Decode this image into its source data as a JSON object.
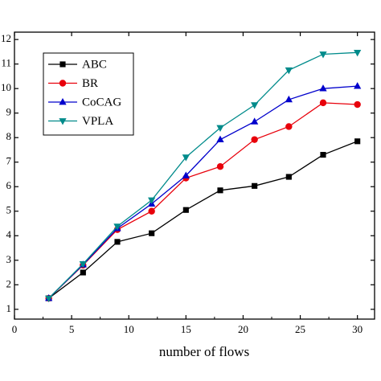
{
  "chart_data": {
    "type": "line",
    "title": "",
    "xlabel": "number of flows",
    "ylabel": "",
    "xlim": [
      0,
      31.5
    ],
    "ylim": [
      0.6,
      12.3
    ],
    "x_ticks": [
      0,
      5,
      10,
      15,
      20,
      25,
      30
    ],
    "x_tick_labels": [
      "0",
      "5",
      "10",
      "15",
      "20",
      "25",
      "30"
    ],
    "y_ticks": [
      1,
      2,
      3,
      4,
      5,
      6,
      7,
      8,
      9,
      10,
      11,
      12
    ],
    "y_tick_labels": [
      "1",
      "2",
      "3",
      "4",
      "5",
      "6",
      "7",
      "8",
      "9",
      "10",
      "11",
      "12"
    ],
    "grid": false,
    "legend_position": "top-left",
    "x": [
      3,
      6,
      9,
      12,
      15,
      18,
      21,
      24,
      27,
      30
    ],
    "series": [
      {
        "name": "ABC",
        "color": "#000000",
        "marker": "square",
        "values": [
          1.45,
          2.5,
          3.75,
          4.1,
          5.05,
          5.85,
          6.03,
          6.4,
          7.3,
          7.85
        ]
      },
      {
        "name": "BR",
        "color": "#e8000b",
        "marker": "circle",
        "values": [
          1.45,
          2.8,
          4.25,
          5.0,
          6.35,
          6.82,
          7.92,
          8.45,
          9.42,
          9.35
        ]
      },
      {
        "name": "CoCAG",
        "color": "#0000cc",
        "marker": "triangle-up",
        "values": [
          1.45,
          2.82,
          4.3,
          5.3,
          6.45,
          7.92,
          8.65,
          9.55,
          10.0,
          10.1
        ]
      },
      {
        "name": "VPLA",
        "color": "#008b8b",
        "marker": "triangle-down",
        "values": [
          1.45,
          2.85,
          4.38,
          5.45,
          7.2,
          8.4,
          9.33,
          10.75,
          11.4,
          11.47
        ]
      }
    ]
  }
}
